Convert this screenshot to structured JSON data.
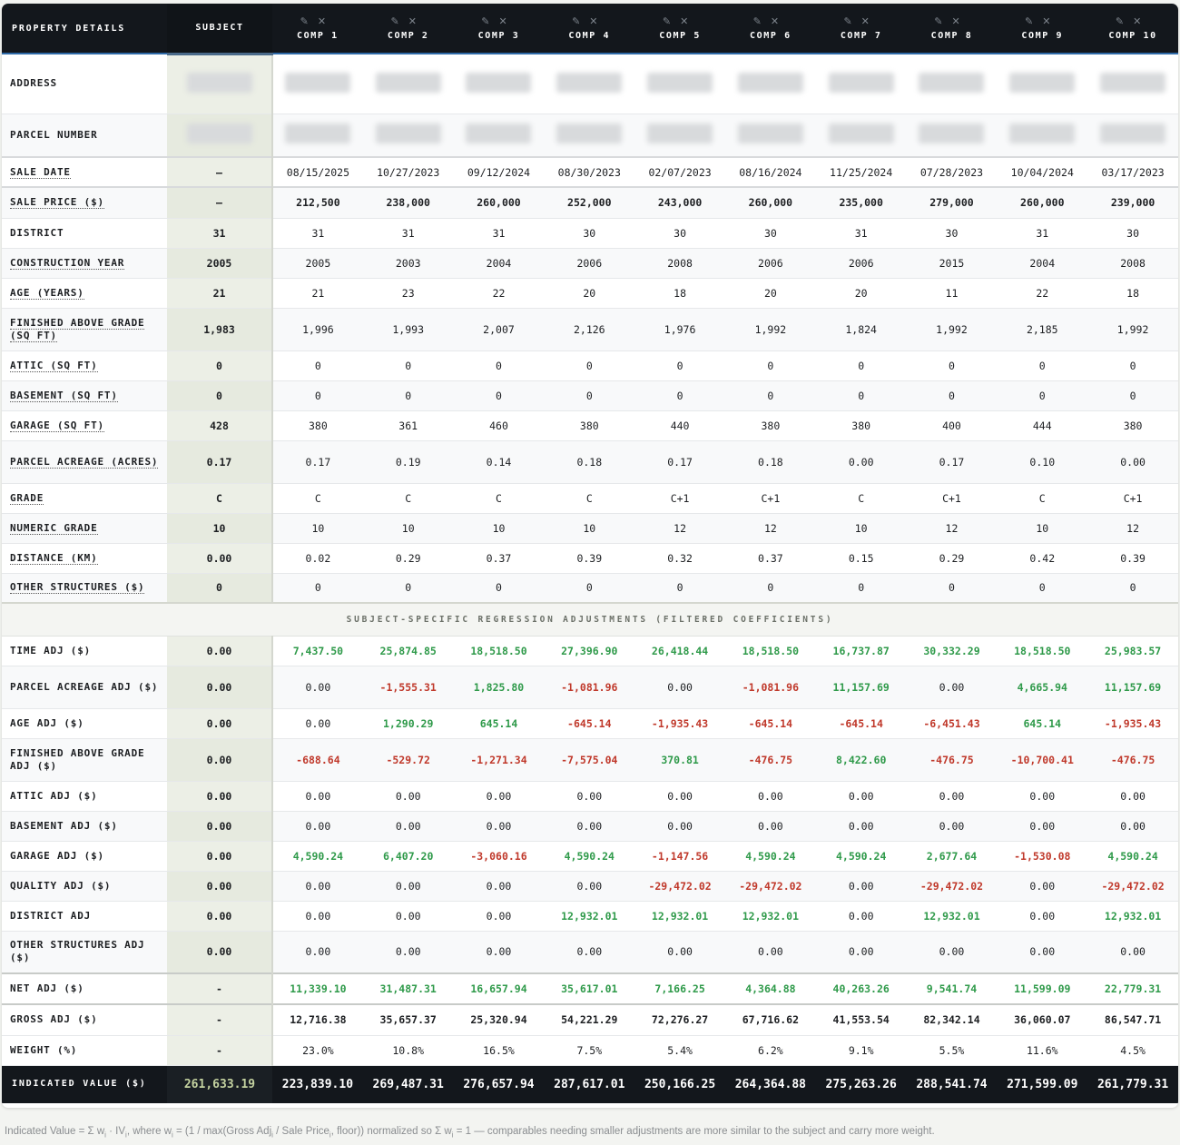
{
  "header": {
    "label": "PROPERTY DETAILS",
    "subject": "SUBJECT",
    "comps": [
      "COMP 1",
      "COMP 2",
      "COMP 3",
      "COMP 4",
      "COMP 5",
      "COMP 6",
      "COMP 7",
      "COMP 8",
      "COMP 9",
      "COMP 10"
    ],
    "edit_icon": "✎",
    "remove_icon": "✕"
  },
  "rows": {
    "address": {
      "label": "ADDRESS"
    },
    "parcel": {
      "label": "PARCEL NUMBER"
    },
    "sale_date": {
      "label": "SALE DATE",
      "subject": "—",
      "values": [
        "08/15/2025",
        "10/27/2023",
        "09/12/2024",
        "08/30/2023",
        "02/07/2023",
        "08/16/2024",
        "11/25/2024",
        "07/28/2023",
        "10/04/2024",
        "03/17/2023"
      ]
    },
    "sale_price": {
      "label": "SALE PRICE ($)",
      "subject": "—",
      "values": [
        "212,500",
        "238,000",
        "260,000",
        "252,000",
        "243,000",
        "260,000",
        "235,000",
        "279,000",
        "260,000",
        "239,000"
      ]
    },
    "district": {
      "label": "DISTRICT",
      "subject": "31",
      "values": [
        "31",
        "31",
        "31",
        "30",
        "30",
        "30",
        "31",
        "30",
        "31",
        "30"
      ]
    },
    "construction_year": {
      "label": "CONSTRUCTION YEAR",
      "subject": "2005",
      "values": [
        "2005",
        "2003",
        "2004",
        "2006",
        "2008",
        "2006",
        "2006",
        "2015",
        "2004",
        "2008"
      ]
    },
    "age": {
      "label": "AGE (YEARS)",
      "subject": "21",
      "values": [
        "21",
        "23",
        "22",
        "20",
        "18",
        "20",
        "20",
        "11",
        "22",
        "18"
      ]
    },
    "finished": {
      "label": "FINISHED ABOVE GRADE (SQ FT)",
      "subject": "1,983",
      "values": [
        "1,996",
        "1,993",
        "2,007",
        "2,126",
        "1,976",
        "1,992",
        "1,824",
        "1,992",
        "2,185",
        "1,992"
      ]
    },
    "attic": {
      "label": "ATTIC (SQ FT)",
      "subject": "0",
      "values": [
        "0",
        "0",
        "0",
        "0",
        "0",
        "0",
        "0",
        "0",
        "0",
        "0"
      ]
    },
    "basement": {
      "label": "BASEMENT (SQ FT)",
      "subject": "0",
      "values": [
        "0",
        "0",
        "0",
        "0",
        "0",
        "0",
        "0",
        "0",
        "0",
        "0"
      ]
    },
    "garage": {
      "label": "GARAGE (SQ FT)",
      "subject": "428",
      "values": [
        "380",
        "361",
        "460",
        "380",
        "440",
        "380",
        "380",
        "400",
        "444",
        "380"
      ]
    },
    "acreage": {
      "label": "PARCEL ACREAGE (ACRES)",
      "subject": "0.17",
      "values": [
        "0.17",
        "0.19",
        "0.14",
        "0.18",
        "0.17",
        "0.18",
        "0.00",
        "0.17",
        "0.10",
        "0.00"
      ]
    },
    "grade": {
      "label": "GRADE",
      "subject": "C",
      "values": [
        "C",
        "C",
        "C",
        "C",
        "C+1",
        "C+1",
        "C",
        "C+1",
        "C",
        "C+1"
      ]
    },
    "numeric_grade": {
      "label": "NUMERIC GRADE",
      "subject": "10",
      "values": [
        "10",
        "10",
        "10",
        "10",
        "12",
        "12",
        "10",
        "12",
        "10",
        "12"
      ]
    },
    "distance": {
      "label": "DISTANCE (KM)",
      "subject": "0.00",
      "values": [
        "0.02",
        "0.29",
        "0.37",
        "0.39",
        "0.32",
        "0.37",
        "0.15",
        "0.29",
        "0.42",
        "0.39"
      ]
    },
    "other_structures": {
      "label": "OTHER STRUCTURES ($)",
      "subject": "0",
      "values": [
        "0",
        "0",
        "0",
        "0",
        "0",
        "0",
        "0",
        "0",
        "0",
        "0"
      ]
    }
  },
  "section_title": "SUBJECT-SPECIFIC REGRESSION ADJUSTMENTS (FILTERED COEFFICIENTS)",
  "adjustments": {
    "time": {
      "label": "TIME ADJ ($)",
      "subject": "0.00",
      "values": [
        "7,437.50",
        "25,874.85",
        "18,518.50",
        "27,396.90",
        "26,418.44",
        "18,518.50",
        "16,737.87",
        "30,332.29",
        "18,518.50",
        "25,983.57"
      ]
    },
    "acreage": {
      "label": "PARCEL ACREAGE ADJ ($)",
      "subject": "0.00",
      "values": [
        "0.00",
        "-1,555.31",
        "1,825.80",
        "-1,081.96",
        "0.00",
        "-1,081.96",
        "11,157.69",
        "0.00",
        "4,665.94",
        "11,157.69"
      ]
    },
    "age": {
      "label": "AGE ADJ ($)",
      "subject": "0.00",
      "values": [
        "0.00",
        "1,290.29",
        "645.14",
        "-645.14",
        "-1,935.43",
        "-645.14",
        "-645.14",
        "-6,451.43",
        "645.14",
        "-1,935.43"
      ]
    },
    "finished": {
      "label": "FINISHED ABOVE GRADE ADJ ($)",
      "subject": "0.00",
      "values": [
        "-688.64",
        "-529.72",
        "-1,271.34",
        "-7,575.04",
        "370.81",
        "-476.75",
        "8,422.60",
        "-476.75",
        "-10,700.41",
        "-476.75"
      ]
    },
    "attic": {
      "label": "ATTIC ADJ ($)",
      "subject": "0.00",
      "values": [
        "0.00",
        "0.00",
        "0.00",
        "0.00",
        "0.00",
        "0.00",
        "0.00",
        "0.00",
        "0.00",
        "0.00"
      ]
    },
    "basement": {
      "label": "BASEMENT ADJ ($)",
      "subject": "0.00",
      "values": [
        "0.00",
        "0.00",
        "0.00",
        "0.00",
        "0.00",
        "0.00",
        "0.00",
        "0.00",
        "0.00",
        "0.00"
      ]
    },
    "garage": {
      "label": "GARAGE ADJ ($)",
      "subject": "0.00",
      "values": [
        "4,590.24",
        "6,407.20",
        "-3,060.16",
        "4,590.24",
        "-1,147.56",
        "4,590.24",
        "4,590.24",
        "2,677.64",
        "-1,530.08",
        "4,590.24"
      ]
    },
    "quality": {
      "label": "QUALITY ADJ ($)",
      "subject": "0.00",
      "values": [
        "0.00",
        "0.00",
        "0.00",
        "0.00",
        "-29,472.02",
        "-29,472.02",
        "0.00",
        "-29,472.02",
        "0.00",
        "-29,472.02"
      ]
    },
    "district": {
      "label": "DISTRICT ADJ",
      "subject": "0.00",
      "values": [
        "0.00",
        "0.00",
        "0.00",
        "12,932.01",
        "12,932.01",
        "12,932.01",
        "0.00",
        "12,932.01",
        "0.00",
        "12,932.01"
      ]
    },
    "other": {
      "label": "OTHER STRUCTURES ADJ ($)",
      "subject": "0.00",
      "values": [
        "0.00",
        "0.00",
        "0.00",
        "0.00",
        "0.00",
        "0.00",
        "0.00",
        "0.00",
        "0.00",
        "0.00"
      ]
    }
  },
  "summary": {
    "net": {
      "label": "NET ADJ ($)",
      "subject": "-",
      "values": [
        "11,339.10",
        "31,487.31",
        "16,657.94",
        "35,617.01",
        "7,166.25",
        "4,364.88",
        "40,263.26",
        "9,541.74",
        "11,599.09",
        "22,779.31"
      ]
    },
    "gross": {
      "label": "GROSS ADJ ($)",
      "subject": "-",
      "values": [
        "12,716.38",
        "35,657.37",
        "25,320.94",
        "54,221.29",
        "72,276.27",
        "67,716.62",
        "41,553.54",
        "82,342.14",
        "36,060.07",
        "86,547.71"
      ]
    },
    "weight": {
      "label": "WEIGHT (%)",
      "subject": "-",
      "values": [
        "23.0%",
        "10.8%",
        "16.5%",
        "7.5%",
        "5.4%",
        "6.2%",
        "9.1%",
        "5.5%",
        "11.6%",
        "4.5%"
      ]
    }
  },
  "indicated": {
    "label": "INDICATED VALUE ($)",
    "subject": "261,633.19",
    "values": [
      "223,839.10",
      "269,487.31",
      "276,657.94",
      "287,617.01",
      "250,166.25",
      "264,364.88",
      "275,263.26",
      "288,541.74",
      "271,599.09",
      "261,779.31"
    ]
  },
  "footnote": {
    "a": "Indicated Value = Σ w",
    "i": "i",
    "b": " · IV",
    "c": ", where w",
    "d": " = (1 / max(Gross Adj",
    "e": " / Sale Price",
    "f": ", floor)) normalized so Σ w",
    "g": " = 1 — comparables needing smaller adjustments are more similar to the subject and carry more weight."
  },
  "colors": {
    "header_bg": "#13171c",
    "positive": "#2f9a4a",
    "negative": "#c0392b",
    "subject_bg": "#ecefe6",
    "indicated_subject": "#c4d2a0"
  }
}
